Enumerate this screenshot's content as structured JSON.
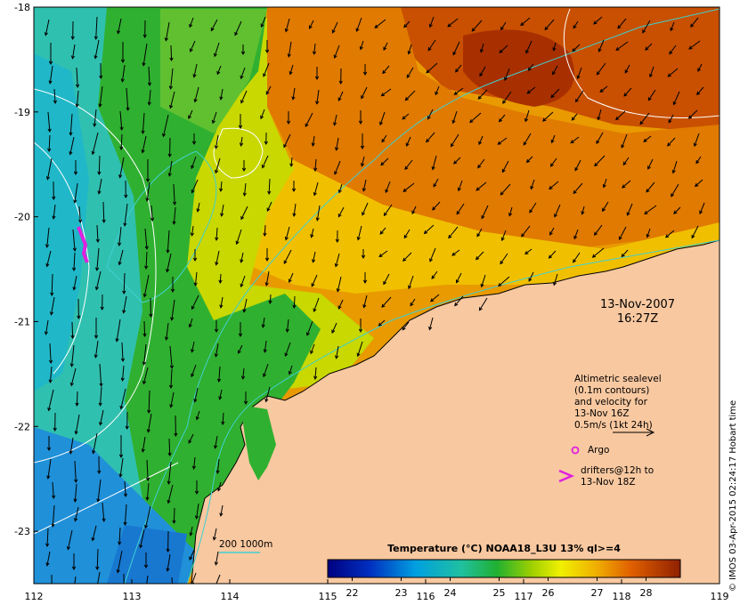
{
  "map": {
    "lon_range": [
      112,
      119
    ],
    "lat_range": [
      -23.5,
      -18
    ],
    "x_ticks": [
      "112",
      "113",
      "114",
      "115",
      "116",
      "117",
      "118",
      "119"
    ],
    "y_ticks": [
      "-18",
      "-19",
      "-20",
      "-21",
      "-22",
      "-23"
    ]
  },
  "date": {
    "line1": "13-Nov-2007",
    "line2": "16:27Z"
  },
  "legend": {
    "altimetric_lines": [
      "Altimetric sealevel",
      "(0.1m contours)",
      "and velocity for",
      "13-Nov 16Z",
      "0.5m/s (1kt 24h)"
    ],
    "argo_label": "Argo",
    "drifters_lines": [
      "drifters@12h to",
      "13-Nov 18Z"
    ],
    "isobath_label": "200  1000m"
  },
  "colorbar": {
    "title": "Temperature (°C) NOAA18_L3U 13% ql>=4",
    "ticks": [
      "22",
      "23",
      "24",
      "25",
      "26",
      "27",
      "28"
    ],
    "range": [
      21.5,
      28.7
    ]
  },
  "credit": "© IMOS 03-Apr-2015 02:24:17 Hobart time",
  "colors": {
    "land": "#f8c8a0",
    "argo": "#e020e0",
    "isobath": "#40d0d0",
    "contour": "#ffffff"
  }
}
